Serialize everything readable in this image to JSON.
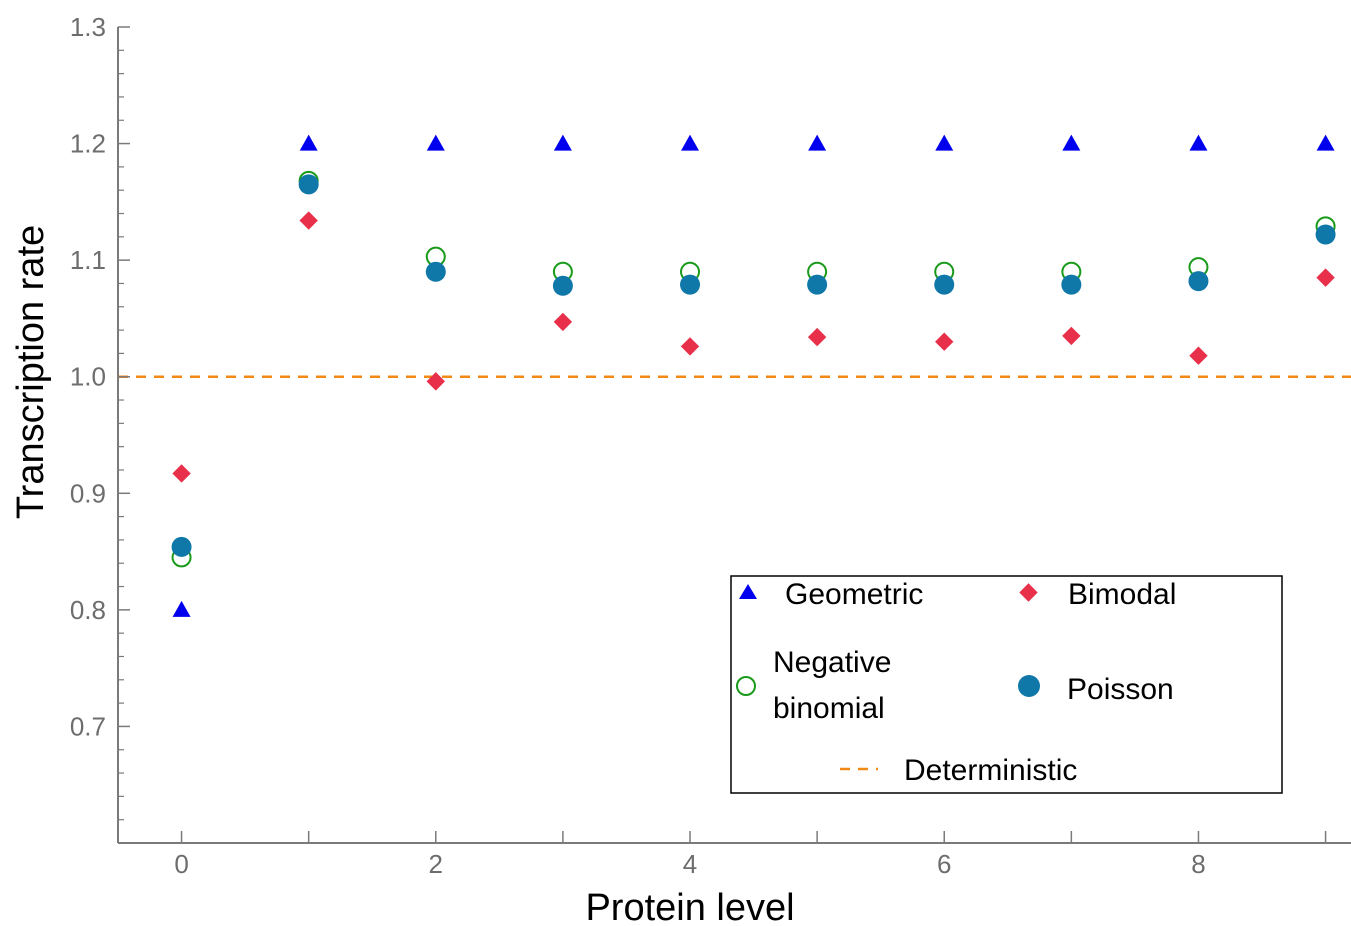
{
  "chart_data": {
    "type": "scatter",
    "xlabel": "Protein level",
    "ylabel": "Transcription rate",
    "xlim": [
      -0.5,
      9.2
    ],
    "ylim": [
      0.6,
      1.3
    ],
    "x_ticks": [
      0,
      2,
      4,
      6,
      8
    ],
    "x_minor_ticks": [
      1,
      3,
      5,
      7,
      9
    ],
    "y_ticks": [
      0.7,
      0.8,
      0.9,
      1.0,
      1.1,
      1.2,
      1.3
    ],
    "y_tick_labels": [
      "0.7",
      "0.8",
      "0.9",
      "1.0",
      "1.1",
      "1.2",
      "1.3"
    ],
    "series": [
      {
        "name": "Geometric",
        "marker": "triangle",
        "color": "#0000ee",
        "x": [
          0,
          1,
          2,
          3,
          4,
          5,
          6,
          7,
          8,
          9
        ],
        "y": [
          0.8,
          1.2,
          1.2,
          1.2,
          1.2,
          1.2,
          1.2,
          1.2,
          1.2,
          1.2
        ]
      },
      {
        "name": "Bimodal",
        "marker": "diamond",
        "color": "#e8304a",
        "x": [
          0,
          1,
          2,
          3,
          4,
          5,
          6,
          7,
          8,
          9
        ],
        "y": [
          0.917,
          1.134,
          0.996,
          1.047,
          1.026,
          1.034,
          1.03,
          1.035,
          1.018,
          1.085
        ]
      },
      {
        "name": "Negative binomial",
        "marker": "open-circle",
        "color": "#1a9a1a",
        "x": [
          0,
          1,
          2,
          3,
          4,
          5,
          6,
          7,
          8,
          9
        ],
        "y": [
          0.845,
          1.168,
          1.103,
          1.09,
          1.09,
          1.09,
          1.09,
          1.09,
          1.094,
          1.129
        ]
      },
      {
        "name": "Poisson",
        "marker": "filled-circle",
        "color": "#0f78a8",
        "x": [
          0,
          1,
          2,
          3,
          4,
          5,
          6,
          7,
          8,
          9
        ],
        "y": [
          0.854,
          1.165,
          1.09,
          1.078,
          1.079,
          1.079,
          1.079,
          1.079,
          1.082,
          1.122
        ]
      }
    ],
    "reference_lines": [
      {
        "name": "Deterministic",
        "y": 1.0,
        "style": "dashed",
        "color": "#f08a14"
      }
    ],
    "legend": {
      "placement": "lower-right",
      "entries": [
        {
          "label": "Geometric",
          "marker": "triangle",
          "color": "#0000ee"
        },
        {
          "label": "Bimodal",
          "marker": "diamond",
          "color": "#e8304a"
        },
        {
          "label_lines": [
            "Negative",
            "binomial"
          ],
          "marker": "open-circle",
          "color": "#1a9a1a"
        },
        {
          "label": "Poisson",
          "marker": "filled-circle",
          "color": "#0f78a8"
        },
        {
          "label": "Deterministic",
          "marker": "dashed-line",
          "color": "#f08a14"
        }
      ]
    },
    "grid": false
  }
}
